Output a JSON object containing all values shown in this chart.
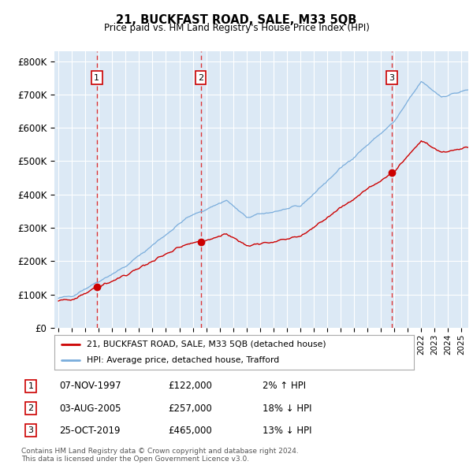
{
  "title": "21, BUCKFAST ROAD, SALE, M33 5QB",
  "subtitle": "Price paid vs. HM Land Registry's House Price Index (HPI)",
  "hpi_label": "HPI: Average price, detached house, Trafford",
  "price_label": "21, BUCKFAST ROAD, SALE, M33 5QB (detached house)",
  "price_color": "#cc0000",
  "hpi_color": "#7aaddc",
  "bg_color": "#dce9f5",
  "grid_color": "#ffffff",
  "sale_dates": [
    1997.855,
    2005.586,
    2019.813
  ],
  "sale_prices": [
    122000,
    257000,
    465000
  ],
  "sale_labels": [
    "1",
    "2",
    "3"
  ],
  "sale_info": [
    {
      "label": "1",
      "date": "07-NOV-1997",
      "price": "£122,000",
      "hpi_rel": "2% ↑ HPI"
    },
    {
      "label": "2",
      "date": "03-AUG-2005",
      "price": "£257,000",
      "hpi_rel": "18% ↓ HPI"
    },
    {
      "label": "3",
      "date": "25-OCT-2019",
      "price": "£465,000",
      "hpi_rel": "13% ↓ HPI"
    }
  ],
  "footer1": "Contains HM Land Registry data © Crown copyright and database right 2024.",
  "footer2": "This data is licensed under the Open Government Licence v3.0.",
  "ylim": [
    0,
    830000
  ],
  "yticks": [
    0,
    100000,
    200000,
    300000,
    400000,
    500000,
    600000,
    700000,
    800000
  ],
  "xlim_start": 1994.7,
  "xlim_end": 2025.5
}
